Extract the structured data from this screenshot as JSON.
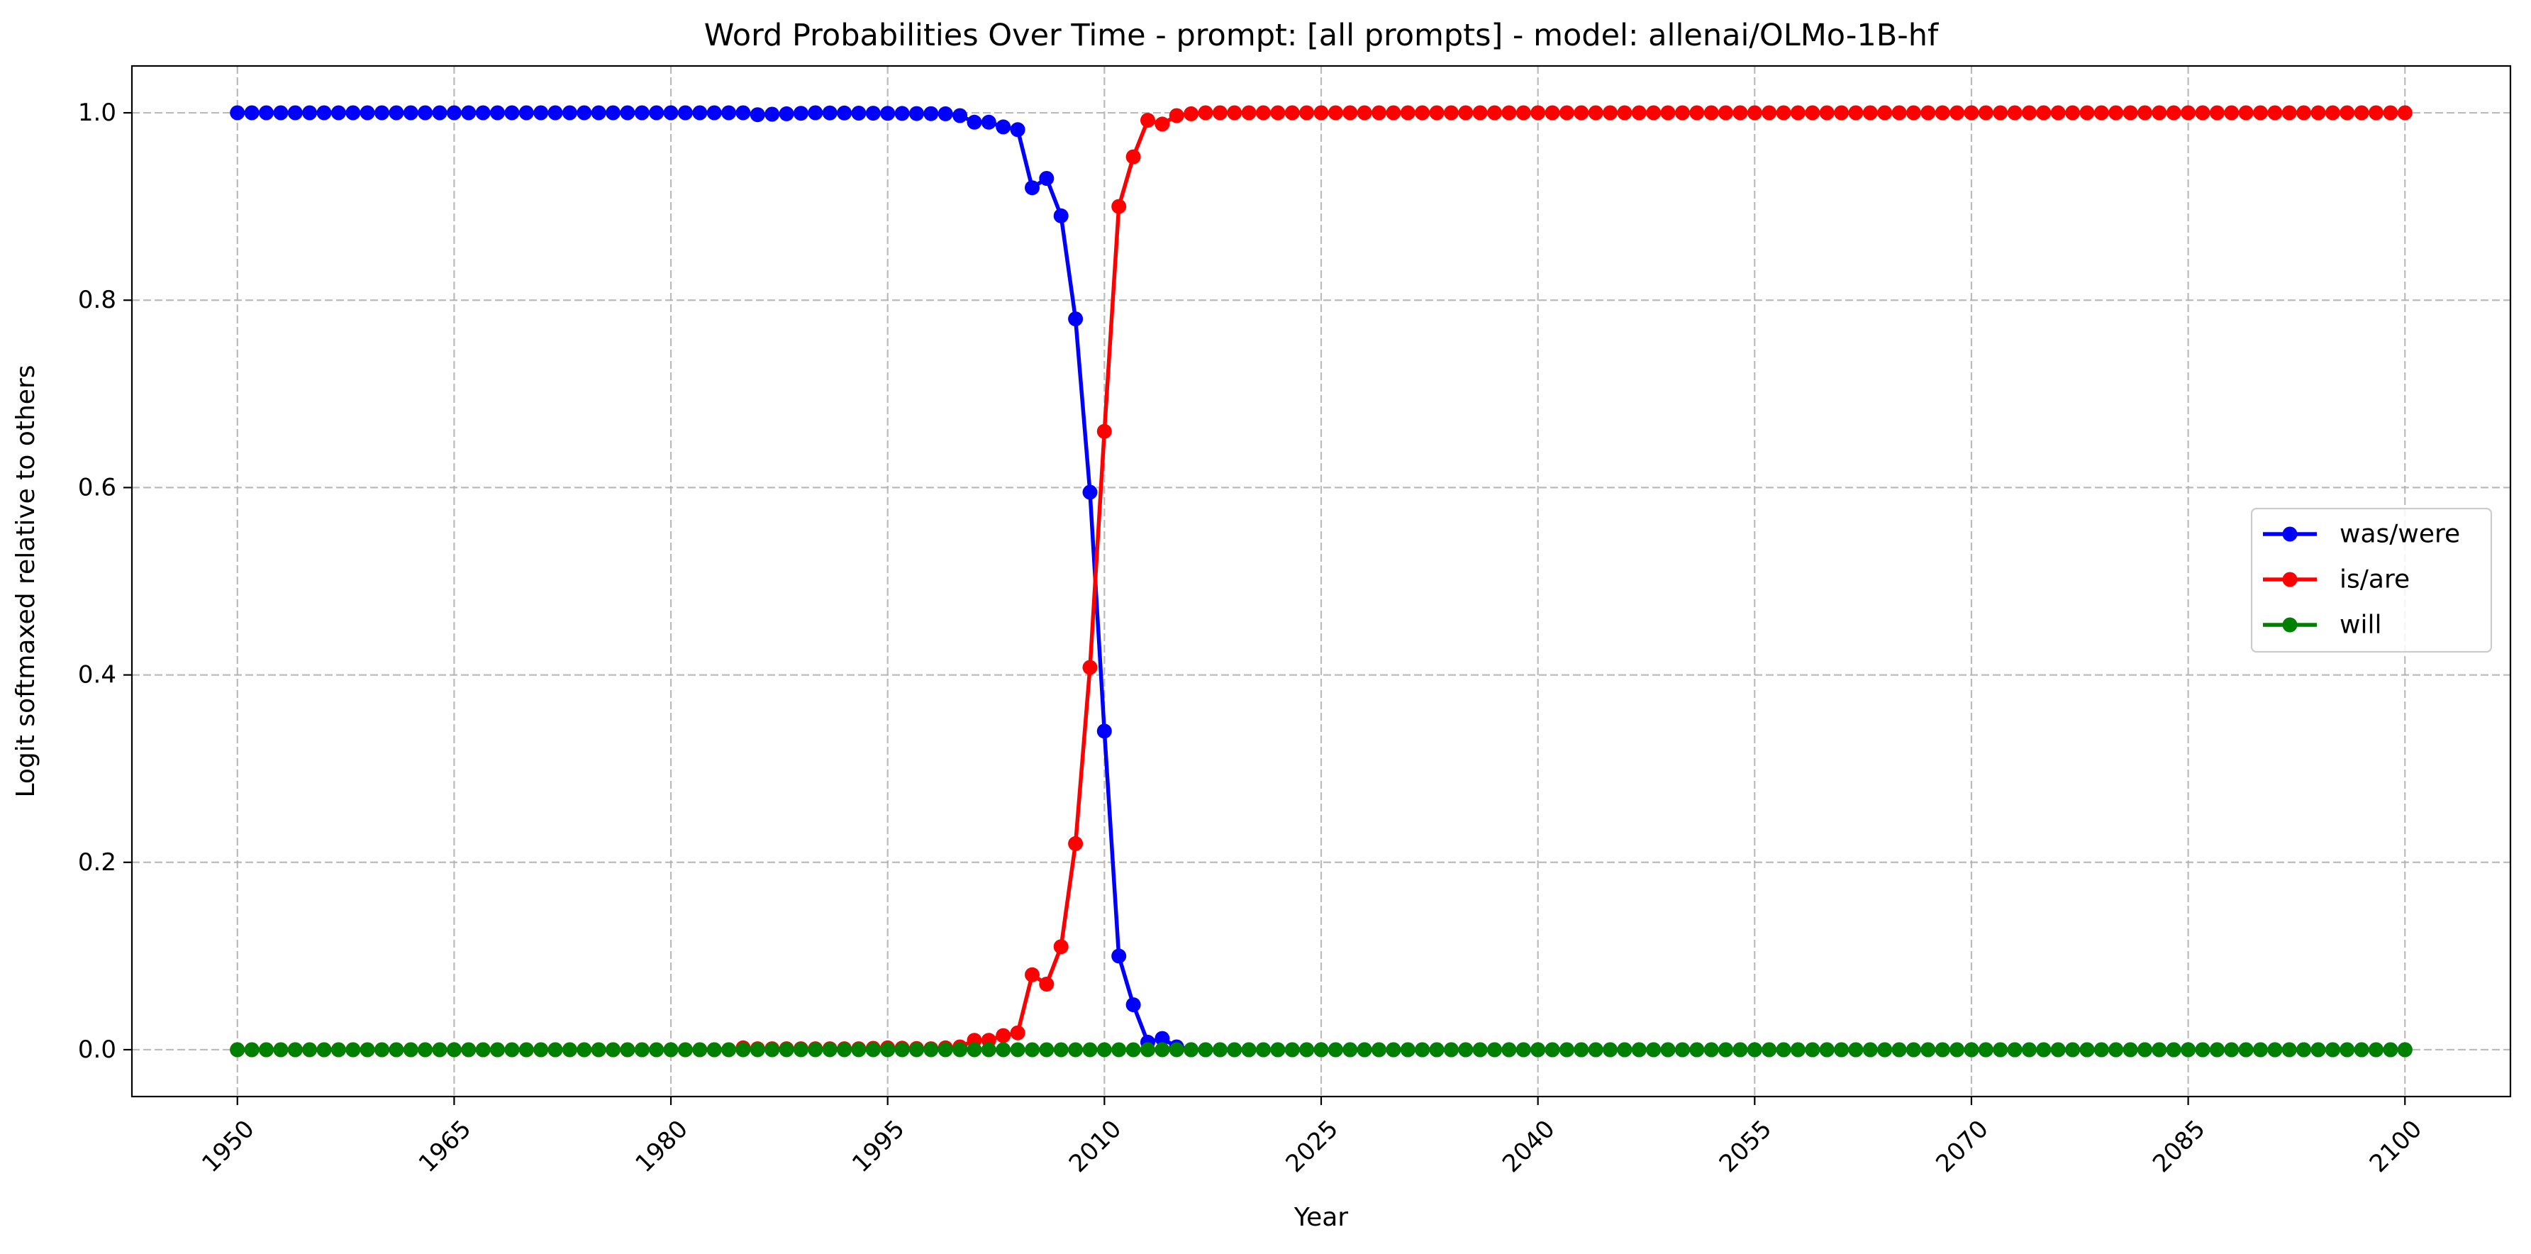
{
  "chart_data": {
    "type": "line",
    "title": "Word Probabilities Over Time - prompt: [all prompts] - model: allenai/OLMo-1B-hf",
    "xlabel": "Year",
    "ylabel": "Logit softmaxed relative to others",
    "xlim": [
      1942.7,
      2107.3
    ],
    "ylim": [
      -0.05,
      1.05
    ],
    "xticks": [
      1950,
      1965,
      1980,
      1995,
      2010,
      2025,
      2040,
      2055,
      2070,
      2085,
      2100
    ],
    "yticks": [
      0.0,
      0.2,
      0.4,
      0.6,
      0.8,
      1.0
    ],
    "ytick_labels": [
      "0.0",
      "0.2",
      "0.4",
      "0.6",
      "0.8",
      "1.0"
    ],
    "xtick_rotation": 45,
    "grid": true,
    "legend_position": "center-right",
    "x_start": 1950,
    "x_end": 2100,
    "series": [
      {
        "name": "was/were",
        "color": "#0000ff",
        "sparse_points": [
          [
            1950,
            1.0
          ],
          [
            1985,
            1.0
          ],
          [
            1986,
            0.998
          ],
          [
            1990,
            1.0
          ],
          [
            1999,
            0.999
          ],
          [
            2000,
            0.997
          ],
          [
            2001,
            0.99
          ],
          [
            2002,
            0.99
          ],
          [
            2003,
            0.985
          ],
          [
            2004,
            0.982
          ],
          [
            2005,
            0.92
          ],
          [
            2006,
            0.93
          ],
          [
            2007,
            0.89
          ],
          [
            2008,
            0.78
          ],
          [
            2009,
            0.595
          ],
          [
            2010,
            0.34
          ],
          [
            2011,
            0.1
          ],
          [
            2012,
            0.048
          ],
          [
            2013,
            0.008
          ],
          [
            2014,
            0.012
          ],
          [
            2015,
            0.003
          ],
          [
            2016,
            0.0
          ],
          [
            2100,
            0.0
          ]
        ]
      },
      {
        "name": "is/are",
        "color": "#ff0000",
        "sparse_points": [
          [
            1950,
            0.0
          ],
          [
            1984,
            0.0
          ],
          [
            1985,
            0.002
          ],
          [
            1986,
            0.001
          ],
          [
            1993,
            0.001
          ],
          [
            1995,
            0.002
          ],
          [
            1998,
            0.001
          ],
          [
            2000,
            0.003
          ],
          [
            2001,
            0.01
          ],
          [
            2002,
            0.01
          ],
          [
            2003,
            0.015
          ],
          [
            2004,
            0.018
          ],
          [
            2005,
            0.08
          ],
          [
            2006,
            0.07
          ],
          [
            2007,
            0.11
          ],
          [
            2008,
            0.22
          ],
          [
            2009,
            0.408
          ],
          [
            2010,
            0.66
          ],
          [
            2011,
            0.9
          ],
          [
            2012,
            0.953
          ],
          [
            2013,
            0.992
          ],
          [
            2014,
            0.988
          ],
          [
            2015,
            0.997
          ],
          [
            2016,
            0.999
          ],
          [
            2017,
            1.0
          ],
          [
            2100,
            1.0
          ]
        ]
      },
      {
        "name": "will",
        "color": "#008000",
        "sparse_points": [
          [
            1950,
            0.0
          ],
          [
            2100,
            0.0
          ]
        ]
      }
    ]
  }
}
